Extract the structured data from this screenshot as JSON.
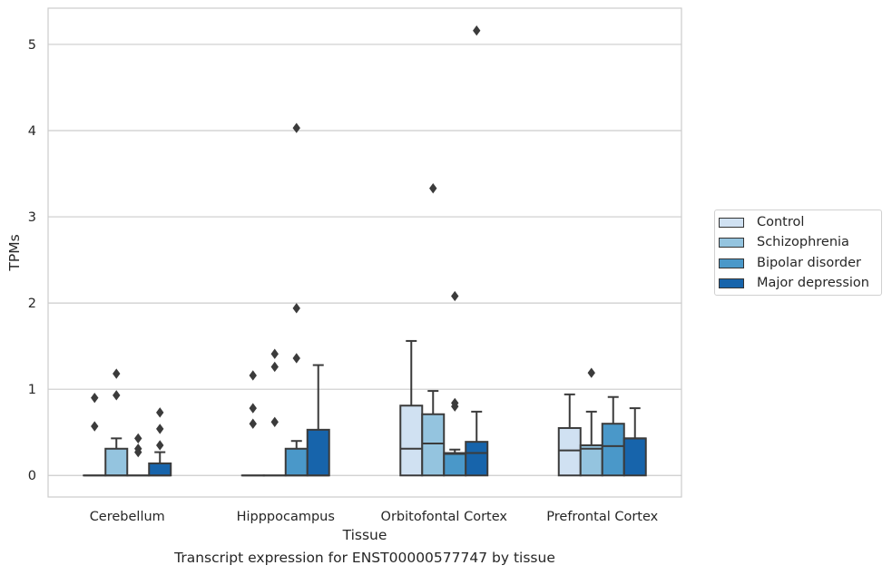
{
  "caption": "Transcript expression for ENST00000577747 by tissue",
  "chart_data": {
    "type": "box",
    "xlabel": "Tissue",
    "ylabel": "TPMs",
    "ylim": [
      -0.25,
      5.42
    ],
    "yticks": [
      0,
      1,
      2,
      3,
      4,
      5
    ],
    "grid": "horizontal",
    "legend_position": "right",
    "categories": [
      "Cerebellum",
      "Hipppocampus",
      "Orbitofontal Cortex",
      "Prefrontal Cortex"
    ],
    "series": [
      {
        "name": "Control",
        "color": "#d0e1f2",
        "boxes": [
          {
            "q1": 0,
            "median": 0,
            "q3": 0,
            "whisker_low": 0,
            "whisker_high": 0,
            "outliers": [
              0.57,
              0.9
            ]
          },
          {
            "q1": 0,
            "median": 0,
            "q3": 0,
            "whisker_low": 0,
            "whisker_high": 0,
            "outliers": [
              0.6,
              0.78,
              1.16
            ]
          },
          {
            "q1": 0,
            "median": 0.31,
            "q3": 0.81,
            "whisker_low": 0,
            "whisker_high": 1.56,
            "outliers": []
          },
          {
            "q1": 0,
            "median": 0.29,
            "q3": 0.55,
            "whisker_low": 0,
            "whisker_high": 0.94,
            "outliers": []
          }
        ]
      },
      {
        "name": "Schizophrenia",
        "color": "#94c4df",
        "boxes": [
          {
            "q1": 0,
            "median": 0,
            "q3": 0.31,
            "whisker_low": 0,
            "whisker_high": 0.43,
            "outliers": [
              0.93,
              1.18
            ]
          },
          {
            "q1": 0,
            "median": 0,
            "q3": 0,
            "whisker_low": 0,
            "whisker_high": 0,
            "outliers": [
              0.62,
              1.26,
              1.41
            ]
          },
          {
            "q1": 0,
            "median": 0.37,
            "q3": 0.71,
            "whisker_low": 0,
            "whisker_high": 0.98,
            "outliers": [
              3.33
            ]
          },
          {
            "q1": 0,
            "median": 0.31,
            "q3": 0.35,
            "whisker_low": 0,
            "whisker_high": 0.74,
            "outliers": [
              1.19
            ]
          }
        ]
      },
      {
        "name": "Bipolar disorder",
        "color": "#4a98c9",
        "boxes": [
          {
            "q1": 0,
            "median": 0,
            "q3": 0,
            "whisker_low": 0,
            "whisker_high": 0,
            "outliers": [
              0.27,
              0.31,
              0.43
            ]
          },
          {
            "q1": 0,
            "median": 0,
            "q3": 0.31,
            "whisker_low": 0,
            "whisker_high": 0.4,
            "outliers": [
              1.36,
              1.94,
              4.03
            ]
          },
          {
            "q1": 0,
            "median": 0.25,
            "q3": 0.26,
            "whisker_low": 0,
            "whisker_high": 0.3,
            "outliers": [
              0.8,
              0.84,
              2.08
            ]
          },
          {
            "q1": 0,
            "median": 0.34,
            "q3": 0.6,
            "whisker_low": 0,
            "whisker_high": 0.91,
            "outliers": []
          }
        ]
      },
      {
        "name": "Major depression",
        "color": "#1764ab",
        "boxes": [
          {
            "q1": 0,
            "median": 0,
            "q3": 0.14,
            "whisker_low": 0,
            "whisker_high": 0.27,
            "outliers": [
              0.35,
              0.54,
              0.73
            ]
          },
          {
            "q1": 0,
            "median": 0,
            "q3": 0.53,
            "whisker_low": 0,
            "whisker_high": 1.28,
            "outliers": []
          },
          {
            "q1": 0,
            "median": 0.26,
            "q3": 0.39,
            "whisker_low": 0,
            "whisker_high": 0.74,
            "outliers": [
              5.16
            ]
          },
          {
            "q1": 0,
            "median": 0.43,
            "q3": 0.43,
            "whisker_low": 0,
            "whisker_high": 0.78,
            "outliers": []
          }
        ]
      }
    ]
  }
}
